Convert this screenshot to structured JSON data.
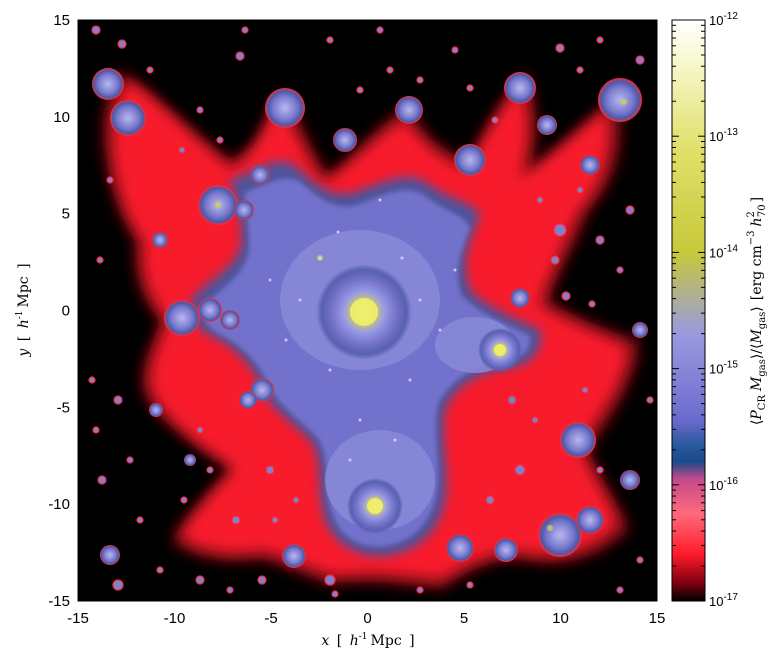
{
  "chart_data": {
    "type": "heatmap",
    "title": "",
    "xlabel": {
      "var": "x",
      "open": "[",
      "unit": "h",
      "sup": "-1",
      "unit2": "Mpc",
      "close": "]"
    },
    "ylabel": {
      "var": "y",
      "open": "[",
      "unit": "h",
      "sup": "-1",
      "unit2": "Mpc",
      "close": "]"
    },
    "xlim": [
      -15,
      15
    ],
    "ylim": [
      -15,
      15
    ],
    "xticks": [
      "-15",
      "-10",
      "-5",
      "0",
      "5",
      "10",
      "15"
    ],
    "yticks": [
      "-15",
      "-10",
      "-5",
      "0",
      "5",
      "10",
      "15"
    ],
    "colorbar": {
      "scale": "log",
      "range": [
        1e-17,
        1e-12
      ],
      "ticks": [
        {
          "base": "10",
          "exp": "-17",
          "value": 1e-17
        },
        {
          "base": "10",
          "exp": "-16",
          "value": 1e-16
        },
        {
          "base": "10",
          "exp": "-15",
          "value": 1e-15
        },
        {
          "base": "10",
          "exp": "-14",
          "value": 1e-14
        },
        {
          "base": "10",
          "exp": "-13",
          "value": 1e-13
        },
        {
          "base": "10",
          "exp": "-12",
          "value": 1e-12
        }
      ],
      "label": {
        "lt": "⟨",
        "p": "P",
        "p_sub": "CR",
        "m": "M",
        "m_sub": "gas",
        "mid": "⟩/⟨",
        "m2": "M",
        "m2_sub": "gas",
        "rt": "⟩",
        "unit_open": "[erg cm",
        "unit_sup": "−3",
        "unit_h": "h",
        "unit_h_sup": "2",
        "unit_h_sub": "70",
        "unit_close": "]"
      },
      "colormap": [
        "#000000",
        "#7a0010",
        "#ff1a2a",
        "#ff6a7a",
        "#1a4a8a",
        "#7777cc",
        "#a8a8e8",
        "#c8c83a",
        "#f4f4a0",
        "#ffffff"
      ]
    },
    "features": [
      {
        "label": "central-cluster",
        "x": 0.3,
        "y": 0.0,
        "r": 1.6,
        "level": 1e-14
      },
      {
        "label": "east-halo",
        "x": 7.2,
        "y": -2.0,
        "r": 0.8,
        "level": 3e-14
      },
      {
        "label": "south-halo",
        "x": 0.6,
        "y": -10.0,
        "r": 0.9,
        "level": 3e-14
      },
      {
        "label": "north-west-halo",
        "x": -7.8,
        "y": 5.6,
        "r": 0.9,
        "level": 1e-15
      },
      {
        "label": "north-east-halo",
        "x": 13.2,
        "y": 10.8,
        "r": 1.1,
        "level": 1e-15
      },
      {
        "label": "far-north-west-halo",
        "x": -13.2,
        "y": 11.8,
        "r": 0.9,
        "level": 1e-15
      },
      {
        "label": "south-east-halo",
        "x": 9.6,
        "y": -11.0,
        "r": 1.2,
        "level": 1e-15
      },
      {
        "label": "west-halo",
        "x": -8.8,
        "y": -0.3,
        "r": 1.0,
        "level": 1e-15
      }
    ]
  }
}
